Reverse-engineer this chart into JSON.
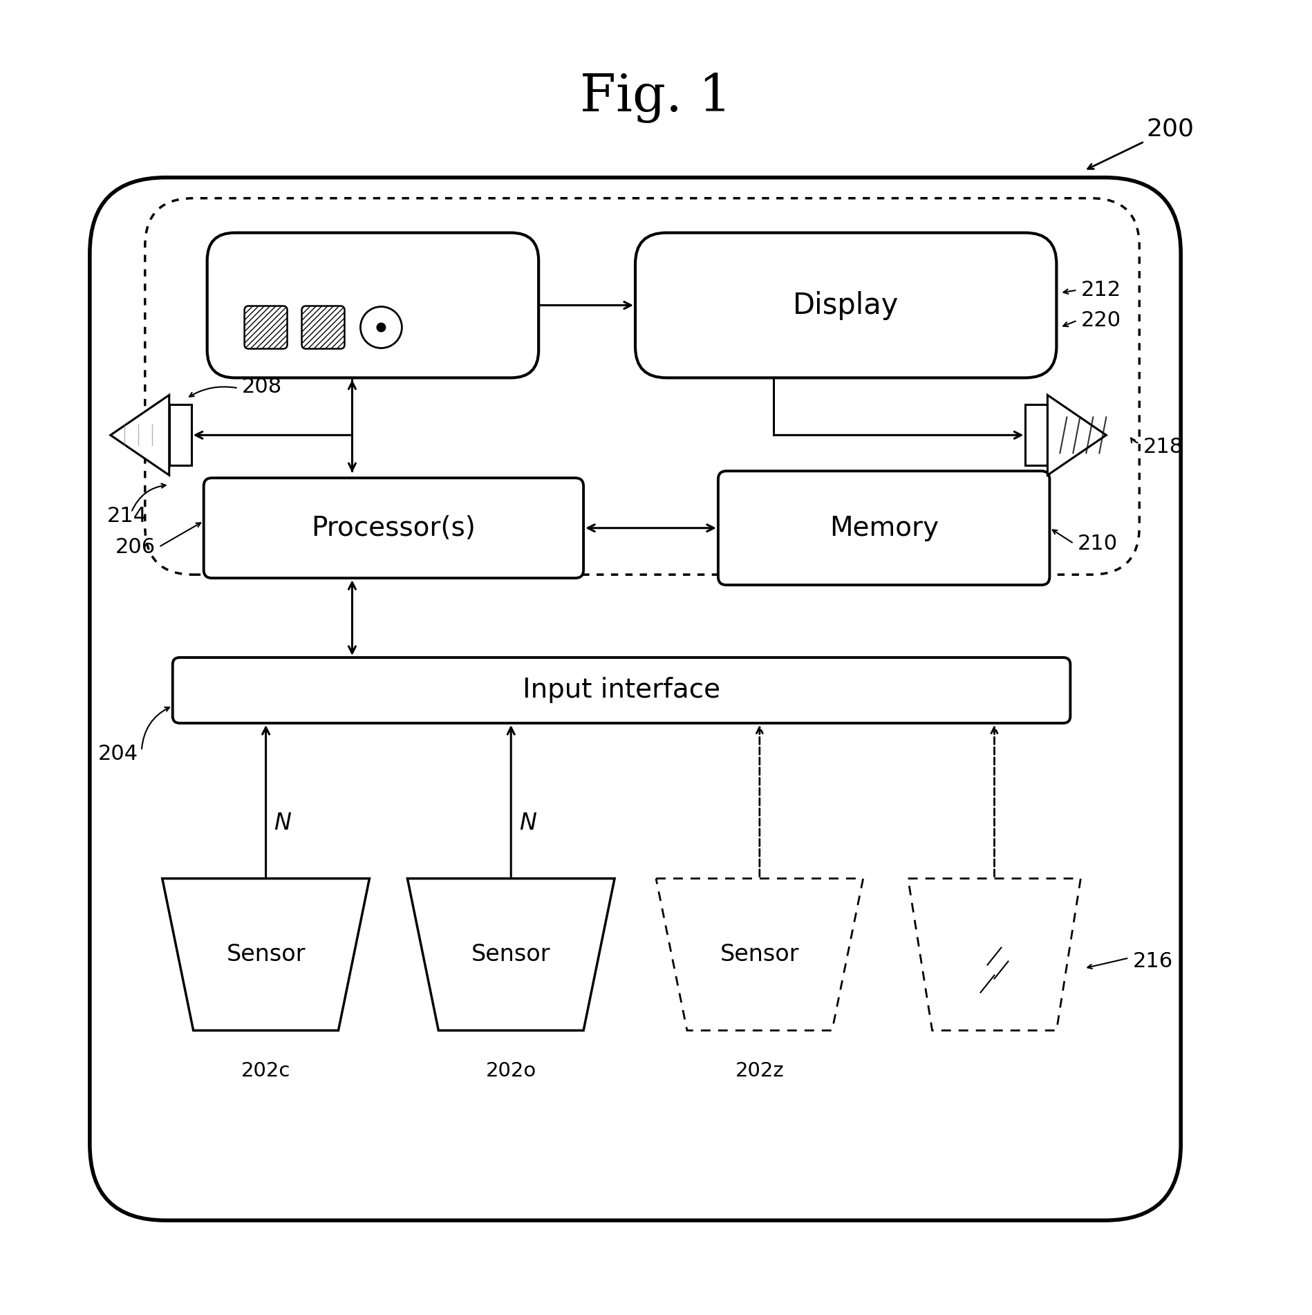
{
  "title": "Fig. 1",
  "bg_color": "#ffffff",
  "label_200": "200",
  "label_208": "208",
  "label_212": "212",
  "label_220": "220",
  "label_214": "214",
  "label_218": "218",
  "label_206": "206",
  "label_210": "210",
  "label_204": "204",
  "label_216": "216",
  "label_202c": "202c",
  "label_202o": "202o",
  "label_202z": "202z",
  "text_display": "Display",
  "text_memory": "Memory",
  "text_processor": "Processor(s)",
  "text_input": "Input interface",
  "text_sensor": "Sensor",
  "text_N": "N"
}
